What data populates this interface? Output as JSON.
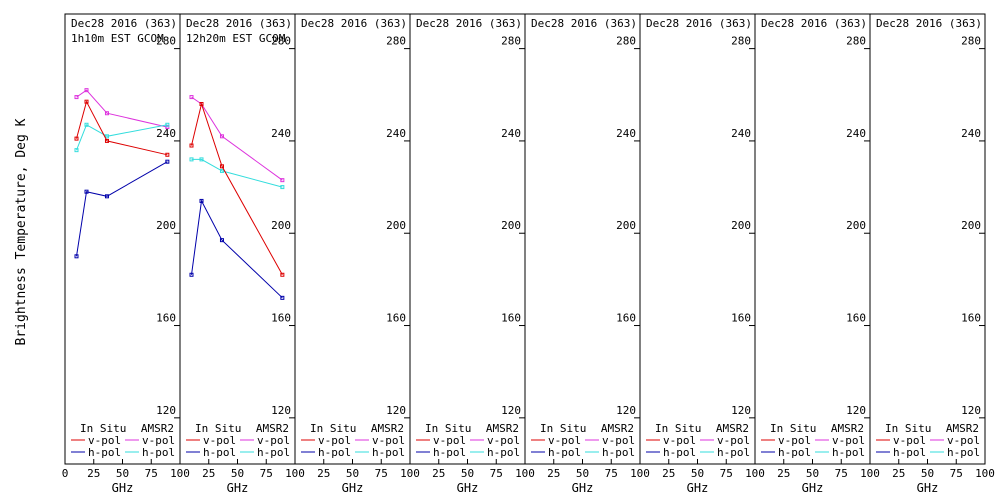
{
  "chart_data": {
    "type": "line",
    "ylabel": "Brightness Temperature, Deg K",
    "xlabel": "GHz",
    "xlim": [
      0,
      100
    ],
    "ylim": [
      100,
      295
    ],
    "x_ticks": [
      "0",
      "25",
      "50",
      "75",
      "100"
    ],
    "y_ticks": [
      120,
      160,
      200,
      240,
      280
    ],
    "colors": {
      "insitu_v": "#dd0000",
      "insitu_h": "#0000aa",
      "amsr2_v": "#dd33dd",
      "amsr2_h": "#33dddd"
    },
    "legend": {
      "group1": "In Situ",
      "group2": "AMSR2",
      "vpol": "v-pol",
      "hpol": "h-pol"
    },
    "panels": [
      {
        "title": "Dec28 2016 (363)",
        "subtitle": "1h10m EST GCOM",
        "series": [
          {
            "key": "amsr2_v",
            "x": [
              10,
              18.7,
              36.5,
              89
            ],
            "y": [
              259,
              262,
              252,
              246
            ]
          },
          {
            "key": "amsr2_h",
            "x": [
              10,
              18.7,
              36.5,
              89
            ],
            "y": [
              236,
              247,
              242,
              247
            ]
          },
          {
            "key": "insitu_v",
            "x": [
              10,
              18.7,
              36.5,
              89
            ],
            "y": [
              241,
              257,
              240,
              234
            ]
          },
          {
            "key": "insitu_h",
            "x": [
              10,
              18.7,
              36.5,
              89
            ],
            "y": [
              190,
              218,
              216,
              231
            ]
          }
        ]
      },
      {
        "title": "Dec28 2016 (363)",
        "subtitle": "12h20m EST GCOM",
        "series": [
          {
            "key": "amsr2_v",
            "x": [
              10,
              18.7,
              36.5,
              89
            ],
            "y": [
              259,
              256,
              242,
              223
            ]
          },
          {
            "key": "amsr2_h",
            "x": [
              10,
              18.7,
              36.5,
              89
            ],
            "y": [
              232,
              232,
              227,
              220
            ]
          },
          {
            "key": "insitu_v",
            "x": [
              10,
              18.7,
              36.5,
              89
            ],
            "y": [
              238,
              256,
              229,
              182
            ]
          },
          {
            "key": "insitu_h",
            "x": [
              10,
              18.7,
              36.5,
              89
            ],
            "y": [
              182,
              214,
              197,
              172
            ]
          }
        ]
      },
      {
        "title": "Dec28 2016 (363)",
        "subtitle": "",
        "series": []
      },
      {
        "title": "Dec28 2016 (363)",
        "subtitle": "",
        "series": []
      },
      {
        "title": "Dec28 2016 (363)",
        "subtitle": "",
        "series": []
      },
      {
        "title": "Dec28 2016 (363)",
        "subtitle": "",
        "series": []
      },
      {
        "title": "Dec28 2016 (363)",
        "subtitle": "",
        "series": []
      },
      {
        "title": "Dec28 2016 (363)",
        "subtitle": "",
        "series": []
      }
    ]
  }
}
